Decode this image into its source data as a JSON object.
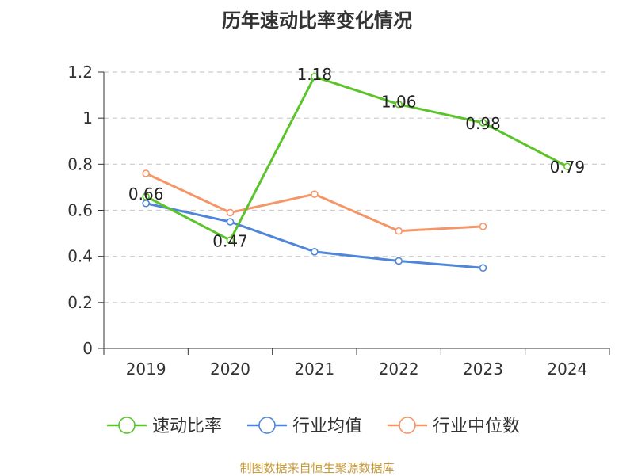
{
  "chart_data": {
    "type": "line",
    "title": "历年速动比率变化情况",
    "categories": [
      "2019",
      "2020",
      "2021",
      "2022",
      "2023",
      "2024"
    ],
    "ylim": [
      0,
      1.2
    ],
    "yticks": [
      "0",
      "0.2",
      "0.4",
      "0.6",
      "0.8",
      "1",
      "1.2"
    ],
    "grid": true,
    "legend_position": "bottom",
    "series": [
      {
        "name": "速动比率",
        "color": "#5cc42b",
        "values": [
          0.66,
          0.47,
          1.18,
          1.06,
          0.98,
          0.79
        ],
        "data_labels": [
          "0.66",
          "0.47",
          "1.18",
          "1.06",
          "0.98",
          "0.79"
        ]
      },
      {
        "name": "行业均值",
        "color": "#4f86d9",
        "values": [
          0.63,
          0.55,
          0.42,
          0.38,
          0.35,
          null
        ]
      },
      {
        "name": "行业中位数",
        "color": "#f59568",
        "values": [
          0.76,
          0.59,
          0.67,
          0.51,
          0.53,
          null
        ]
      }
    ]
  },
  "footer": {
    "source": "制图数据来自恒生聚源数据库"
  }
}
